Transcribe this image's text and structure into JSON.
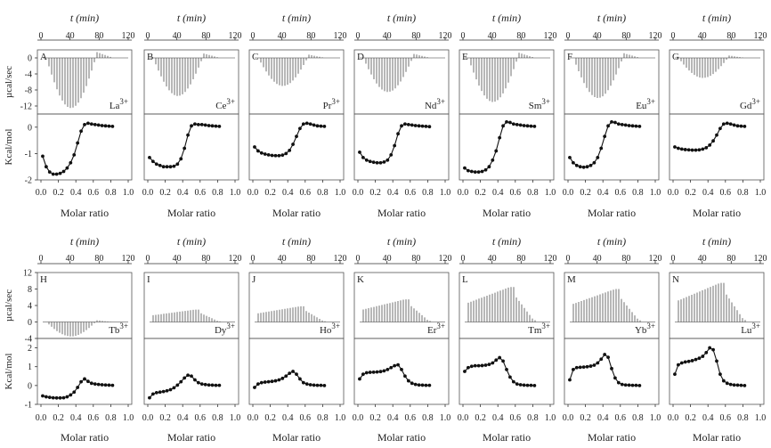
{
  "common": {
    "top_axis_label": "t (min)",
    "top_ticks": [
      "0",
      "40",
      "80",
      "120"
    ],
    "xlabel": "Molar ratio",
    "x_ticks": [
      "0.0",
      "0.2",
      "0.4",
      "0.6",
      "0.8",
      "1.0"
    ],
    "ylabel_top": "µcal/sec",
    "ylabel_bottom": "Kcal/mol"
  },
  "rows": [
    {
      "top_ylim": [
        -14,
        2
      ],
      "top_yticks": [
        "0",
        "-4",
        "-8",
        "-12"
      ],
      "bottom_ylim": [
        -2,
        0.5
      ],
      "bottom_yticks": [
        "0",
        "-1",
        "-2"
      ]
    },
    {
      "top_ylim": [
        -4,
        12
      ],
      "top_yticks": [
        "12",
        "8",
        "4",
        "0",
        "-4"
      ],
      "bottom_ylim": [
        -1,
        2.5
      ],
      "bottom_yticks": [
        "2",
        "1",
        "0",
        "-1"
      ]
    }
  ],
  "chart_data": [
    {
      "type": "line",
      "letter": "A",
      "ion": "La",
      "charge": "3+",
      "row": 0,
      "thermogram_peak_ucal_per_sec": -12.5,
      "points": [
        [
          0.02,
          -1.1
        ],
        [
          0.06,
          -1.5
        ],
        [
          0.1,
          -1.7
        ],
        [
          0.14,
          -1.78
        ],
        [
          0.18,
          -1.78
        ],
        [
          0.22,
          -1.75
        ],
        [
          0.26,
          -1.68
        ],
        [
          0.3,
          -1.55
        ],
        [
          0.34,
          -1.35
        ],
        [
          0.38,
          -1.05
        ],
        [
          0.42,
          -0.6
        ],
        [
          0.46,
          -0.15
        ],
        [
          0.5,
          0.1
        ],
        [
          0.54,
          0.15
        ],
        [
          0.58,
          0.12
        ],
        [
          0.62,
          0.1
        ],
        [
          0.66,
          0.08
        ],
        [
          0.7,
          0.06
        ],
        [
          0.74,
          0.05
        ],
        [
          0.78,
          0.04
        ],
        [
          0.82,
          0.03
        ]
      ]
    },
    {
      "type": "line",
      "letter": "B",
      "ion": "Ce",
      "charge": "3+",
      "row": 0,
      "thermogram_peak_ucal_per_sec": -9.5,
      "points": [
        [
          0.02,
          -1.15
        ],
        [
          0.06,
          -1.3
        ],
        [
          0.1,
          -1.4
        ],
        [
          0.14,
          -1.45
        ],
        [
          0.18,
          -1.5
        ],
        [
          0.22,
          -1.5
        ],
        [
          0.26,
          -1.5
        ],
        [
          0.3,
          -1.48
        ],
        [
          0.34,
          -1.4
        ],
        [
          0.38,
          -1.2
        ],
        [
          0.42,
          -0.8
        ],
        [
          0.46,
          -0.3
        ],
        [
          0.5,
          0.05
        ],
        [
          0.54,
          0.12
        ],
        [
          0.58,
          0.1
        ],
        [
          0.62,
          0.1
        ],
        [
          0.66,
          0.08
        ],
        [
          0.7,
          0.06
        ],
        [
          0.74,
          0.05
        ],
        [
          0.78,
          0.04
        ],
        [
          0.82,
          0.03
        ]
      ]
    },
    {
      "type": "line",
      "letter": "C",
      "ion": "Pr",
      "charge": "3+",
      "row": 0,
      "thermogram_peak_ucal_per_sec": -7.0,
      "points": [
        [
          0.02,
          -0.75
        ],
        [
          0.06,
          -0.9
        ],
        [
          0.1,
          -0.98
        ],
        [
          0.14,
          -1.02
        ],
        [
          0.18,
          -1.05
        ],
        [
          0.22,
          -1.07
        ],
        [
          0.26,
          -1.08
        ],
        [
          0.3,
          -1.08
        ],
        [
          0.34,
          -1.06
        ],
        [
          0.38,
          -1.0
        ],
        [
          0.42,
          -0.88
        ],
        [
          0.46,
          -0.65
        ],
        [
          0.5,
          -0.35
        ],
        [
          0.54,
          -0.05
        ],
        [
          0.58,
          0.12
        ],
        [
          0.62,
          0.15
        ],
        [
          0.66,
          0.12
        ],
        [
          0.7,
          0.08
        ],
        [
          0.74,
          0.05
        ],
        [
          0.78,
          0.04
        ],
        [
          0.82,
          0.03
        ]
      ]
    },
    {
      "type": "line",
      "letter": "D",
      "ion": "Nd",
      "charge": "3+",
      "row": 0,
      "thermogram_peak_ucal_per_sec": -8.5,
      "points": [
        [
          0.02,
          -0.95
        ],
        [
          0.06,
          -1.15
        ],
        [
          0.1,
          -1.25
        ],
        [
          0.14,
          -1.3
        ],
        [
          0.18,
          -1.33
        ],
        [
          0.22,
          -1.35
        ],
        [
          0.26,
          -1.35
        ],
        [
          0.3,
          -1.32
        ],
        [
          0.34,
          -1.25
        ],
        [
          0.38,
          -1.05
        ],
        [
          0.42,
          -0.7
        ],
        [
          0.46,
          -0.25
        ],
        [
          0.5,
          0.05
        ],
        [
          0.54,
          0.12
        ],
        [
          0.58,
          0.1
        ],
        [
          0.62,
          0.08
        ],
        [
          0.66,
          0.06
        ],
        [
          0.7,
          0.05
        ],
        [
          0.74,
          0.04
        ],
        [
          0.78,
          0.03
        ],
        [
          0.82,
          0.02
        ]
      ]
    },
    {
      "type": "line",
      "letter": "E",
      "ion": "Sm",
      "charge": "3+",
      "row": 0,
      "thermogram_peak_ucal_per_sec": -11.0,
      "points": [
        [
          0.02,
          -1.55
        ],
        [
          0.06,
          -1.65
        ],
        [
          0.1,
          -1.68
        ],
        [
          0.14,
          -1.7
        ],
        [
          0.18,
          -1.7
        ],
        [
          0.22,
          -1.68
        ],
        [
          0.26,
          -1.62
        ],
        [
          0.3,
          -1.5
        ],
        [
          0.34,
          -1.25
        ],
        [
          0.38,
          -0.9
        ],
        [
          0.42,
          -0.4
        ],
        [
          0.46,
          0.05
        ],
        [
          0.5,
          0.2
        ],
        [
          0.54,
          0.18
        ],
        [
          0.58,
          0.12
        ],
        [
          0.62,
          0.1
        ],
        [
          0.66,
          0.08
        ],
        [
          0.7,
          0.06
        ],
        [
          0.74,
          0.05
        ],
        [
          0.78,
          0.04
        ],
        [
          0.82,
          0.03
        ]
      ]
    },
    {
      "type": "line",
      "letter": "F",
      "ion": "Eu",
      "charge": "3+",
      "row": 0,
      "thermogram_peak_ucal_per_sec": -10.0,
      "points": [
        [
          0.02,
          -1.15
        ],
        [
          0.06,
          -1.35
        ],
        [
          0.1,
          -1.45
        ],
        [
          0.14,
          -1.5
        ],
        [
          0.18,
          -1.52
        ],
        [
          0.22,
          -1.5
        ],
        [
          0.26,
          -1.45
        ],
        [
          0.3,
          -1.35
        ],
        [
          0.34,
          -1.15
        ],
        [
          0.38,
          -0.8
        ],
        [
          0.42,
          -0.35
        ],
        [
          0.46,
          0.05
        ],
        [
          0.5,
          0.2
        ],
        [
          0.54,
          0.18
        ],
        [
          0.58,
          0.12
        ],
        [
          0.62,
          0.1
        ],
        [
          0.66,
          0.08
        ],
        [
          0.7,
          0.06
        ],
        [
          0.74,
          0.05
        ],
        [
          0.78,
          0.04
        ],
        [
          0.82,
          0.03
        ]
      ]
    },
    {
      "type": "line",
      "letter": "G",
      "ion": "Gd",
      "charge": "3+",
      "row": 0,
      "thermogram_peak_ucal_per_sec": -5.0,
      "points": [
        [
          0.02,
          -0.75
        ],
        [
          0.06,
          -0.8
        ],
        [
          0.1,
          -0.83
        ],
        [
          0.14,
          -0.85
        ],
        [
          0.18,
          -0.86
        ],
        [
          0.22,
          -0.87
        ],
        [
          0.26,
          -0.87
        ],
        [
          0.3,
          -0.86
        ],
        [
          0.34,
          -0.83
        ],
        [
          0.38,
          -0.78
        ],
        [
          0.42,
          -0.68
        ],
        [
          0.46,
          -0.52
        ],
        [
          0.5,
          -0.3
        ],
        [
          0.54,
          -0.05
        ],
        [
          0.58,
          0.12
        ],
        [
          0.62,
          0.15
        ],
        [
          0.66,
          0.12
        ],
        [
          0.7,
          0.08
        ],
        [
          0.74,
          0.05
        ],
        [
          0.78,
          0.04
        ],
        [
          0.82,
          0.03
        ]
      ]
    },
    {
      "type": "line",
      "letter": "H",
      "ion": "Tb",
      "charge": "3+",
      "row": 1,
      "thermogram_peak_ucal_per_sec": -3.5,
      "points": [
        [
          0.02,
          -0.55
        ],
        [
          0.06,
          -0.6
        ],
        [
          0.1,
          -0.63
        ],
        [
          0.14,
          -0.65
        ],
        [
          0.18,
          -0.66
        ],
        [
          0.22,
          -0.66
        ],
        [
          0.26,
          -0.65
        ],
        [
          0.3,
          -0.6
        ],
        [
          0.34,
          -0.5
        ],
        [
          0.38,
          -0.35
        ],
        [
          0.42,
          -0.1
        ],
        [
          0.46,
          0.2
        ],
        [
          0.5,
          0.35
        ],
        [
          0.54,
          0.22
        ],
        [
          0.58,
          0.12
        ],
        [
          0.62,
          0.08
        ],
        [
          0.66,
          0.06
        ],
        [
          0.7,
          0.04
        ],
        [
          0.74,
          0.03
        ],
        [
          0.78,
          0.02
        ],
        [
          0.82,
          0.01
        ]
      ]
    },
    {
      "type": "line",
      "letter": "I",
      "ion": "Dy",
      "charge": "3+",
      "row": 1,
      "thermogram_peak_ucal_per_sec": 3.0,
      "points": [
        [
          0.02,
          -0.65
        ],
        [
          0.06,
          -0.45
        ],
        [
          0.1,
          -0.38
        ],
        [
          0.14,
          -0.35
        ],
        [
          0.18,
          -0.32
        ],
        [
          0.22,
          -0.28
        ],
        [
          0.26,
          -0.22
        ],
        [
          0.3,
          -0.12
        ],
        [
          0.34,
          0.02
        ],
        [
          0.38,
          0.2
        ],
        [
          0.42,
          0.4
        ],
        [
          0.46,
          0.55
        ],
        [
          0.5,
          0.5
        ],
        [
          0.54,
          0.3
        ],
        [
          0.58,
          0.15
        ],
        [
          0.62,
          0.08
        ],
        [
          0.66,
          0.05
        ],
        [
          0.7,
          0.03
        ],
        [
          0.74,
          0.02
        ],
        [
          0.78,
          0.01
        ],
        [
          0.82,
          0.01
        ]
      ]
    },
    {
      "type": "line",
      "letter": "J",
      "ion": "Ho",
      "charge": "3+",
      "row": 1,
      "thermogram_peak_ucal_per_sec": 3.8,
      "points": [
        [
          0.02,
          -0.1
        ],
        [
          0.06,
          0.08
        ],
        [
          0.1,
          0.15
        ],
        [
          0.14,
          0.18
        ],
        [
          0.18,
          0.2
        ],
        [
          0.22,
          0.22
        ],
        [
          0.26,
          0.25
        ],
        [
          0.3,
          0.3
        ],
        [
          0.34,
          0.38
        ],
        [
          0.38,
          0.5
        ],
        [
          0.42,
          0.65
        ],
        [
          0.46,
          0.75
        ],
        [
          0.5,
          0.6
        ],
        [
          0.54,
          0.35
        ],
        [
          0.58,
          0.15
        ],
        [
          0.62,
          0.08
        ],
        [
          0.66,
          0.04
        ],
        [
          0.7,
          0.02
        ],
        [
          0.74,
          0.01
        ],
        [
          0.78,
          0.01
        ],
        [
          0.82,
          0.0
        ]
      ]
    },
    {
      "type": "line",
      "letter": "K",
      "ion": "Er",
      "charge": "3+",
      "row": 1,
      "thermogram_peak_ucal_per_sec": 5.5,
      "points": [
        [
          0.02,
          0.35
        ],
        [
          0.06,
          0.6
        ],
        [
          0.1,
          0.68
        ],
        [
          0.14,
          0.7
        ],
        [
          0.18,
          0.71
        ],
        [
          0.22,
          0.72
        ],
        [
          0.26,
          0.74
        ],
        [
          0.3,
          0.78
        ],
        [
          0.34,
          0.85
        ],
        [
          0.38,
          0.95
        ],
        [
          0.42,
          1.05
        ],
        [
          0.46,
          1.1
        ],
        [
          0.5,
          0.85
        ],
        [
          0.54,
          0.5
        ],
        [
          0.58,
          0.25
        ],
        [
          0.62,
          0.12
        ],
        [
          0.66,
          0.06
        ],
        [
          0.7,
          0.03
        ],
        [
          0.74,
          0.02
        ],
        [
          0.78,
          0.01
        ],
        [
          0.82,
          0.01
        ]
      ]
    },
    {
      "type": "line",
      "letter": "L",
      "ion": "Tm",
      "charge": "3+",
      "row": 1,
      "thermogram_peak_ucal_per_sec": 8.5,
      "points": [
        [
          0.02,
          0.75
        ],
        [
          0.06,
          0.95
        ],
        [
          0.1,
          1.02
        ],
        [
          0.14,
          1.05
        ],
        [
          0.18,
          1.05
        ],
        [
          0.22,
          1.06
        ],
        [
          0.26,
          1.08
        ],
        [
          0.3,
          1.12
        ],
        [
          0.34,
          1.2
        ],
        [
          0.38,
          1.35
        ],
        [
          0.42,
          1.48
        ],
        [
          0.46,
          1.3
        ],
        [
          0.5,
          0.85
        ],
        [
          0.54,
          0.45
        ],
        [
          0.58,
          0.2
        ],
        [
          0.62,
          0.08
        ],
        [
          0.66,
          0.04
        ],
        [
          0.7,
          0.02
        ],
        [
          0.74,
          0.01
        ],
        [
          0.78,
          0.01
        ],
        [
          0.82,
          0.0
        ]
      ]
    },
    {
      "type": "line",
      "letter": "M",
      "ion": "Yb",
      "charge": "3+",
      "row": 1,
      "thermogram_peak_ucal_per_sec": 8.0,
      "points": [
        [
          0.02,
          0.3
        ],
        [
          0.06,
          0.85
        ],
        [
          0.1,
          0.95
        ],
        [
          0.14,
          0.97
        ],
        [
          0.18,
          0.98
        ],
        [
          0.22,
          1.0
        ],
        [
          0.26,
          1.03
        ],
        [
          0.3,
          1.08
        ],
        [
          0.34,
          1.2
        ],
        [
          0.38,
          1.4
        ],
        [
          0.42,
          1.65
        ],
        [
          0.46,
          1.5
        ],
        [
          0.5,
          0.9
        ],
        [
          0.54,
          0.4
        ],
        [
          0.58,
          0.15
        ],
        [
          0.62,
          0.06
        ],
        [
          0.66,
          0.03
        ],
        [
          0.7,
          0.02
        ],
        [
          0.74,
          0.01
        ],
        [
          0.78,
          0.01
        ],
        [
          0.82,
          0.0
        ]
      ]
    },
    {
      "type": "line",
      "letter": "N",
      "ion": "Lu",
      "charge": "3+",
      "row": 1,
      "thermogram_peak_ucal_per_sec": 9.5,
      "points": [
        [
          0.02,
          0.6
        ],
        [
          0.06,
          1.1
        ],
        [
          0.1,
          1.2
        ],
        [
          0.14,
          1.25
        ],
        [
          0.18,
          1.28
        ],
        [
          0.22,
          1.32
        ],
        [
          0.26,
          1.38
        ],
        [
          0.3,
          1.45
        ],
        [
          0.34,
          1.55
        ],
        [
          0.38,
          1.75
        ],
        [
          0.42,
          2.0
        ],
        [
          0.46,
          1.9
        ],
        [
          0.5,
          1.3
        ],
        [
          0.54,
          0.6
        ],
        [
          0.58,
          0.25
        ],
        [
          0.62,
          0.12
        ],
        [
          0.66,
          0.06
        ],
        [
          0.7,
          0.03
        ],
        [
          0.74,
          0.02
        ],
        [
          0.78,
          0.01
        ],
        [
          0.82,
          0.0
        ]
      ]
    }
  ]
}
